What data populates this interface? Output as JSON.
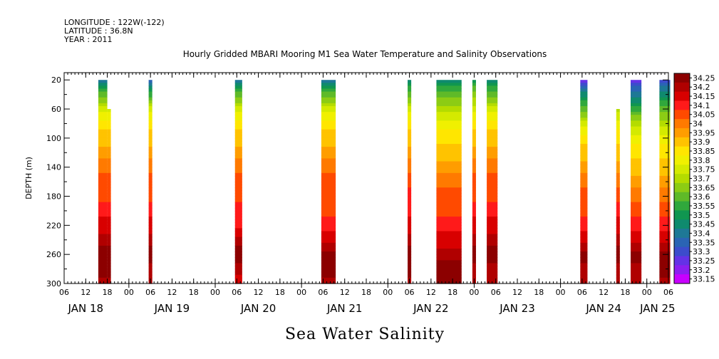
{
  "header": {
    "longitude": "LONGITUDE : 122W(-122)",
    "latitude": "LATITUDE : 36.8N",
    "year": "YEAR : 2011"
  },
  "chart_data": {
    "type": "heatmap",
    "title": "Hourly Gridded MBARI Mooring M1 Sea Water Temperature and Salinity Observations",
    "xlabel": "Sea Water Salinity",
    "ylabel": "DEPTH (m)",
    "ylim": [
      300,
      10
    ],
    "y_ticks": [
      20,
      60,
      100,
      140,
      180,
      220,
      260,
      300
    ],
    "xlim_hours": [
      0,
      168
    ],
    "hour_tick_labels": [
      "06",
      "12",
      "18",
      "00",
      "06",
      "12",
      "18",
      "00",
      "06",
      "12",
      "18",
      "00",
      "06",
      "12",
      "18",
      "00",
      "06",
      "12",
      "18",
      "00",
      "06",
      "12",
      "18",
      "00",
      "06",
      "12",
      "18",
      "00",
      "06"
    ],
    "day_labels": [
      "JAN 18",
      "JAN 19",
      "JAN 20",
      "JAN 21",
      "JAN 22",
      "JAN 23",
      "JAN 24",
      "JAN 25"
    ],
    "colorbar": {
      "levels": [
        "34.25",
        "34.2",
        "34.15",
        "34.1",
        "34.05",
        "34",
        "33.95",
        "33.9",
        "33.85",
        "33.8",
        "33.75",
        "33.7",
        "33.65",
        "33.6",
        "33.55",
        "33.5",
        "33.45",
        "33.4",
        "33.35",
        "33.3",
        "33.25",
        "33.2",
        "33.15"
      ],
      "colors": [
        "#8c0000",
        "#b00000",
        "#d80000",
        "#ff1a1a",
        "#ff4a00",
        "#ff7a00",
        "#ff9d00",
        "#ffc300",
        "#ffe600",
        "#f0f000",
        "#d4ea00",
        "#b4dc00",
        "#8ccc14",
        "#5fba28",
        "#30a83c",
        "#109650",
        "#0f8a6e",
        "#1e7896",
        "#2a64b4",
        "#3c4ccc",
        "#6432e6",
        "#8c1ef0",
        "#c800ff"
      ]
    },
    "profile_depths": [
      20,
      40,
      60,
      80,
      100,
      120,
      140,
      160,
      180,
      200,
      220,
      240,
      260,
      280,
      300
    ],
    "series": [
      {
        "start": 9.5,
        "end": 12.0,
        "top": 20,
        "salinity": [
          33.4,
          33.6,
          33.75,
          33.85,
          33.9,
          33.95,
          34.0,
          34.05,
          34.05,
          34.1,
          34.15,
          34.2,
          34.25,
          34.25,
          34.2
        ]
      },
      {
        "start": 12.0,
        "end": 13.0,
        "top": 60,
        "salinity": [
          33.4,
          33.6,
          33.75,
          33.85,
          33.9,
          33.95,
          34.0,
          34.05,
          34.05,
          34.1,
          34.15,
          34.2,
          34.25,
          34.25,
          34.2
        ]
      },
      {
        "start": 23.5,
        "end": 24.5,
        "top": 20,
        "salinity": [
          33.35,
          33.55,
          33.75,
          33.85,
          33.9,
          33.95,
          34.0,
          34.05,
          34.05,
          34.1,
          34.15,
          34.2,
          34.25,
          34.2,
          34.2
        ]
      },
      {
        "start": 47.5,
        "end": 49.5,
        "top": 20,
        "salinity": [
          33.4,
          33.6,
          33.75,
          33.85,
          33.9,
          33.95,
          34.0,
          34.05,
          34.05,
          34.1,
          34.1,
          34.2,
          34.25,
          34.2,
          34.15
        ]
      },
      {
        "start": 71.5,
        "end": 75.5,
        "top": 20,
        "salinity": [
          33.4,
          33.6,
          33.75,
          33.85,
          33.9,
          33.95,
          34.0,
          34.05,
          34.05,
          34.05,
          34.1,
          34.15,
          34.25,
          34.25,
          34.2
        ]
      },
      {
        "start": 95.5,
        "end": 96.5,
        "top": 20,
        "salinity": [
          33.45,
          33.6,
          33.75,
          33.85,
          33.9,
          33.95,
          34.0,
          34.05,
          34.1,
          34.1,
          34.15,
          34.2,
          34.25,
          34.25,
          34.2
        ]
      },
      {
        "start": 103.5,
        "end": 110.5,
        "top": 20,
        "salinity": [
          33.45,
          33.6,
          33.7,
          33.8,
          33.85,
          33.9,
          33.95,
          34.0,
          34.05,
          34.05,
          34.1,
          34.15,
          34.2,
          34.25,
          34.25
        ]
      },
      {
        "start": 113.5,
        "end": 114.5,
        "top": 20,
        "salinity": [
          33.5,
          33.65,
          33.75,
          33.85,
          33.9,
          33.95,
          34.0,
          34.05,
          34.05,
          34.1,
          34.15,
          34.2,
          34.25,
          34.2,
          34.2
        ]
      },
      {
        "start": 117.5,
        "end": 120.5,
        "top": 20,
        "salinity": [
          33.45,
          33.6,
          33.75,
          33.85,
          33.9,
          33.95,
          34.0,
          34.05,
          34.05,
          34.1,
          34.15,
          34.2,
          34.25,
          34.2,
          34.2
        ]
      },
      {
        "start": 143.5,
        "end": 145.5,
        "top": 20,
        "salinity": [
          33.25,
          33.45,
          33.6,
          33.75,
          33.85,
          33.9,
          33.95,
          34.0,
          34.05,
          34.05,
          34.1,
          34.15,
          34.25,
          34.2,
          34.2
        ]
      },
      {
        "start": 153.5,
        "end": 154.5,
        "top": 60,
        "salinity": [
          33.55,
          33.6,
          33.7,
          33.8,
          33.85,
          33.9,
          33.95,
          34.0,
          34.05,
          34.1,
          34.15,
          34.2,
          34.25,
          34.2,
          34.2
        ]
      },
      {
        "start": 157.5,
        "end": 160.5,
        "top": 20,
        "salinity": [
          33.25,
          33.4,
          33.55,
          33.7,
          33.8,
          33.85,
          33.9,
          33.95,
          34.0,
          34.05,
          34.1,
          34.15,
          34.25,
          34.2,
          34.2
        ]
      },
      {
        "start": 165.5,
        "end": 168.5,
        "top": 20,
        "salinity": [
          33.3,
          33.45,
          33.6,
          33.7,
          33.8,
          33.85,
          33.9,
          33.95,
          34.0,
          34.05,
          34.1,
          34.15,
          34.25,
          34.25,
          34.2
        ]
      }
    ]
  }
}
